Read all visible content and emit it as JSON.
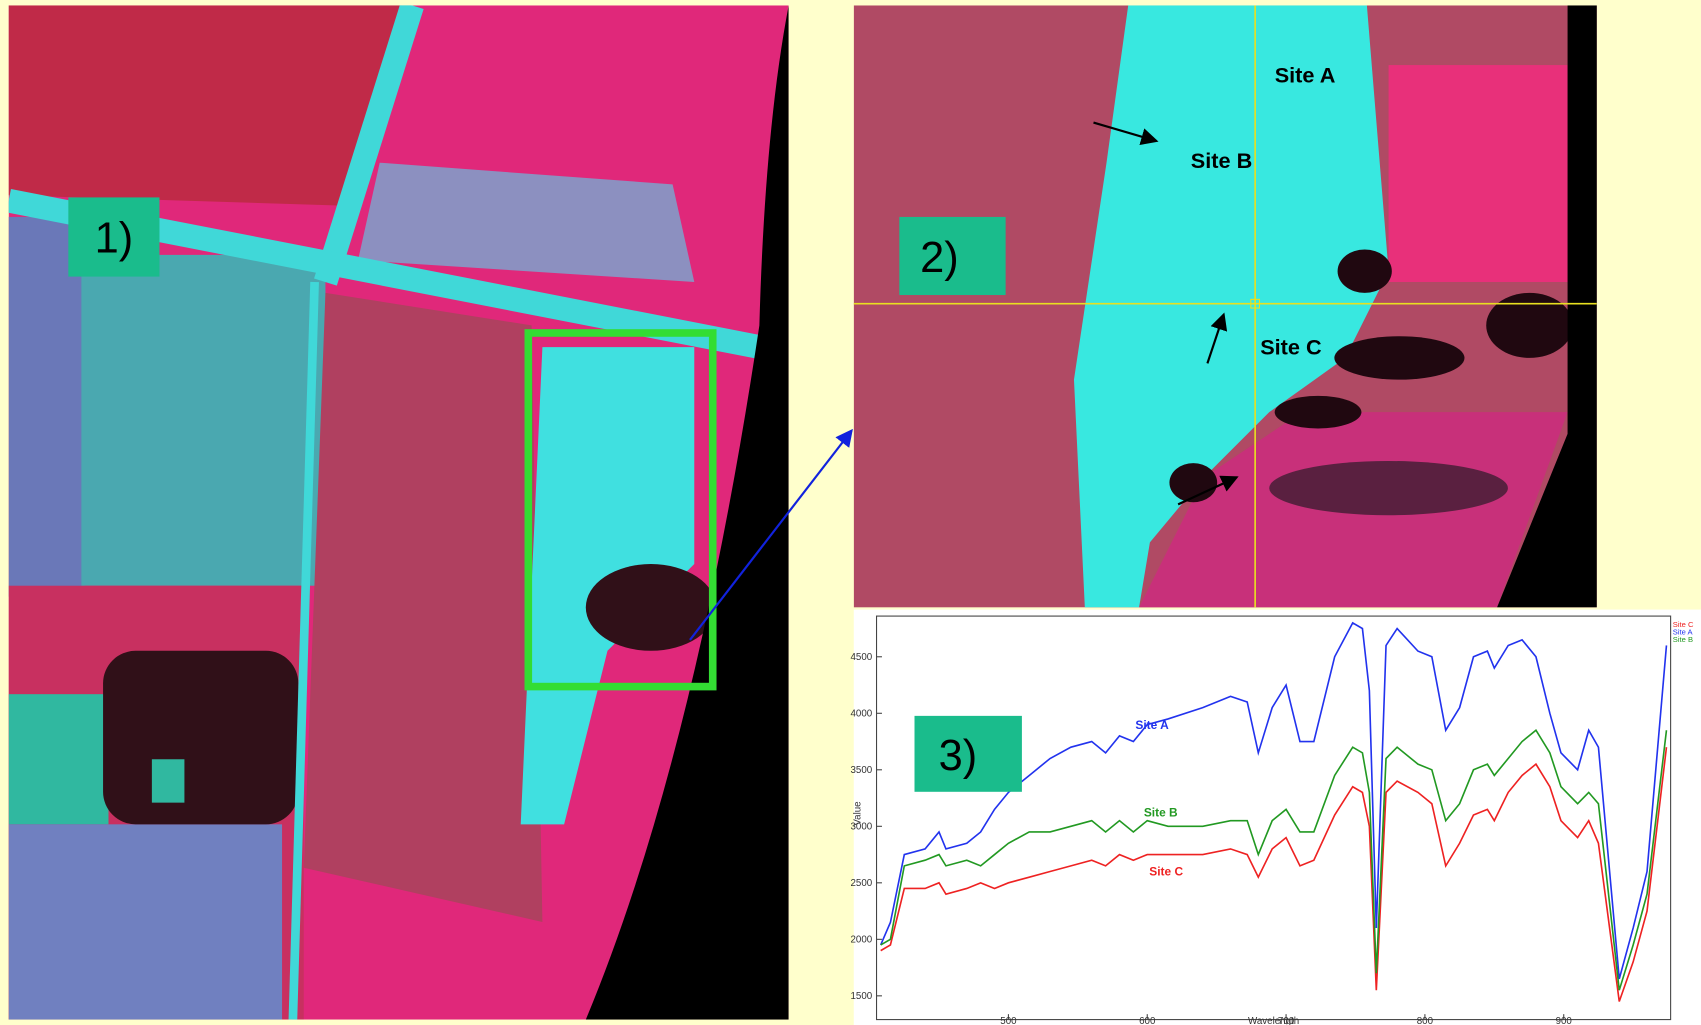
{
  "panels": {
    "labels": [
      "1)",
      "2)",
      "3)"
    ],
    "sites": [
      "Site A",
      "Site B",
      "Site C"
    ]
  },
  "chart_data": {
    "type": "line",
    "x_label": "Wavelength",
    "y_label": "Value",
    "x": [
      408,
      415,
      425,
      440,
      450,
      455,
      470,
      480,
      490,
      500,
      515,
      530,
      545,
      560,
      570,
      580,
      590,
      600,
      615,
      640,
      660,
      672,
      680,
      690,
      700,
      710,
      720,
      735,
      748,
      755,
      760,
      765,
      772,
      780,
      795,
      805,
      815,
      825,
      835,
      845,
      850,
      860,
      870,
      880,
      890,
      898,
      910,
      918,
      925,
      940,
      950,
      960,
      974
    ],
    "series": [
      {
        "name": "Site C",
        "color": "#ee2222",
        "values": [
          1900,
          1950,
          2450,
          2450,
          2500,
          2400,
          2450,
          2500,
          2450,
          2500,
          2550,
          2600,
          2650,
          2700,
          2650,
          2750,
          2700,
          2750,
          2750,
          2750,
          2800,
          2750,
          2550,
          2800,
          2900,
          2650,
          2700,
          3100,
          3350,
          3300,
          3000,
          1550,
          3300,
          3400,
          3300,
          3200,
          2650,
          2850,
          3100,
          3150,
          3050,
          3300,
          3450,
          3550,
          3350,
          3050,
          2900,
          3050,
          2850,
          1450,
          1800,
          2250,
          3700
        ]
      },
      {
        "name": "Site A",
        "color": "#2233ee",
        "values": [
          1950,
          2150,
          2750,
          2800,
          2950,
          2800,
          2850,
          2950,
          3150,
          3300,
          3450,
          3600,
          3700,
          3750,
          3650,
          3800,
          3750,
          3900,
          3950,
          4050,
          4150,
          4100,
          3650,
          4050,
          4250,
          3750,
          3750,
          4500,
          4800,
          4750,
          4200,
          2100,
          4600,
          4750,
          4550,
          4500,
          3850,
          4050,
          4500,
          4550,
          4400,
          4600,
          4650,
          4500,
          4000,
          3650,
          3500,
          3850,
          3700,
          1650,
          2100,
          2600,
          4600
        ]
      },
      {
        "name": "Site B",
        "color": "#229922",
        "values": [
          1950,
          2000,
          2650,
          2700,
          2750,
          2650,
          2700,
          2650,
          2750,
          2850,
          2950,
          2950,
          3000,
          3050,
          2950,
          3050,
          2950,
          3050,
          3000,
          3000,
          3050,
          3050,
          2750,
          3050,
          3150,
          2950,
          2950,
          3450,
          3700,
          3650,
          3300,
          1700,
          3600,
          3700,
          3550,
          3500,
          3050,
          3200,
          3500,
          3550,
          3450,
          3600,
          3750,
          3850,
          3650,
          3350,
          3200,
          3300,
          3200,
          1550,
          1950,
          2400,
          3850
        ]
      }
    ],
    "annotations": [
      "Site A",
      "Site B",
      "Site C"
    ],
    "xlim": [
      405,
      977
    ],
    "xticks": [
      500,
      600,
      700,
      800,
      900
    ],
    "ylim": [
      1290,
      4860
    ],
    "yticks": [
      1500,
      2000,
      2500,
      3000,
      3500,
      4000,
      4500
    ],
    "grid": false
  }
}
